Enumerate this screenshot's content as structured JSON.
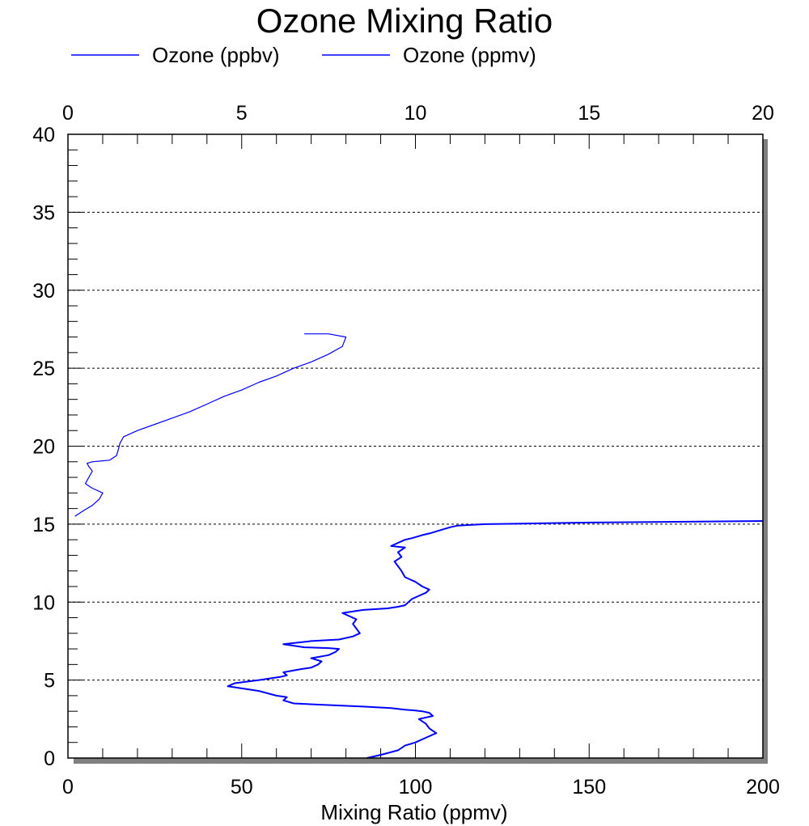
{
  "chart_data": {
    "type": "line",
    "title": "Ozone Mixing Ratio",
    "xlabel": "Mixing Ratio (ppmv)",
    "ylabel": "",
    "xlim": [
      0,
      200
    ],
    "xlim_top": [
      0,
      20
    ],
    "ylim": [
      0,
      40
    ],
    "x_ticks": [
      "0",
      "50",
      "100",
      "150",
      "200"
    ],
    "x_ticks_top": [
      "0",
      "5",
      "10",
      "15",
      "20"
    ],
    "y_ticks": [
      "0",
      "5",
      "10",
      "15",
      "20",
      "25",
      "30",
      "35",
      "40"
    ],
    "grid": "horizontal dotted",
    "legend_position": "top-left",
    "colors": {
      "series": "#0000ff",
      "frame": "#000000",
      "shadow": "#808080"
    },
    "series": [
      {
        "name": "Ozone (ppbv)",
        "axis": "bottom",
        "color": "#0000ff",
        "x": [
          86,
          90,
          95,
          97,
          100,
          103,
          106,
          104,
          103,
          101,
          105,
          104,
          102,
          100,
          97,
          93,
          85,
          75,
          65,
          62,
          63,
          60,
          55,
          46,
          48,
          55,
          61,
          63,
          62,
          67,
          70,
          72,
          73,
          70,
          75,
          77,
          78,
          75,
          68,
          62,
          66,
          70,
          78,
          82,
          84,
          83,
          82,
          83,
          81,
          79,
          85,
          92,
          95,
          97,
          98,
          99,
          101,
          103,
          104,
          102,
          100,
          97,
          96,
          95,
          94,
          96,
          95,
          97,
          93,
          95,
          97,
          99,
          102,
          104,
          107,
          110,
          112,
          120,
          150,
          200
        ],
        "y": [
          0,
          0.2,
          0.5,
          0.8,
          1.0,
          1.3,
          1.6,
          1.9,
          2.2,
          2.5,
          2.7,
          2.9,
          3.0,
          3.05,
          3.1,
          3.2,
          3.3,
          3.4,
          3.5,
          3.7,
          3.9,
          4.0,
          4.3,
          4.6,
          4.8,
          5.0,
          5.2,
          5.3,
          5.5,
          5.7,
          5.8,
          6.0,
          6.2,
          6.4,
          6.6,
          6.8,
          7.0,
          7.05,
          7.1,
          7.3,
          7.4,
          7.5,
          7.6,
          7.8,
          8.0,
          8.3,
          8.6,
          8.9,
          9.1,
          9.3,
          9.5,
          9.6,
          9.7,
          9.8,
          10.0,
          10.2,
          10.4,
          10.6,
          10.8,
          11.0,
          11.3,
          11.6,
          12.0,
          12.3,
          12.6,
          12.9,
          13.2,
          13.5,
          13.6,
          13.8,
          14.0,
          14.1,
          14.3,
          14.4,
          14.6,
          14.8,
          14.9,
          15.0,
          15.1,
          15.2
        ]
      },
      {
        "name": "Ozone (ppmv)",
        "axis": "top",
        "color": "#0000ff",
        "x": [
          0.2,
          0.4,
          0.7,
          0.9,
          1.0,
          0.7,
          0.5,
          0.6,
          0.7,
          0.6,
          0.55,
          0.7,
          1.2,
          1.4,
          1.45,
          1.5,
          1.55,
          1.6,
          2.0,
          2.5,
          3.0,
          3.5,
          4.0,
          4.5,
          5.0,
          5.5,
          6.0,
          6.5,
          7.0,
          7.5,
          7.9,
          8.0,
          7.5,
          6.8
        ],
        "y": [
          15.5,
          15.8,
          16.2,
          16.6,
          17.0,
          17.3,
          17.6,
          18.0,
          18.4,
          18.7,
          18.9,
          19.0,
          19.1,
          19.4,
          19.8,
          20.2,
          20.4,
          20.6,
          21.0,
          21.4,
          21.8,
          22.2,
          22.7,
          23.2,
          23.6,
          24.1,
          24.5,
          25.0,
          25.4,
          25.9,
          26.4,
          27.0,
          27.2,
          27.2
        ]
      }
    ]
  }
}
